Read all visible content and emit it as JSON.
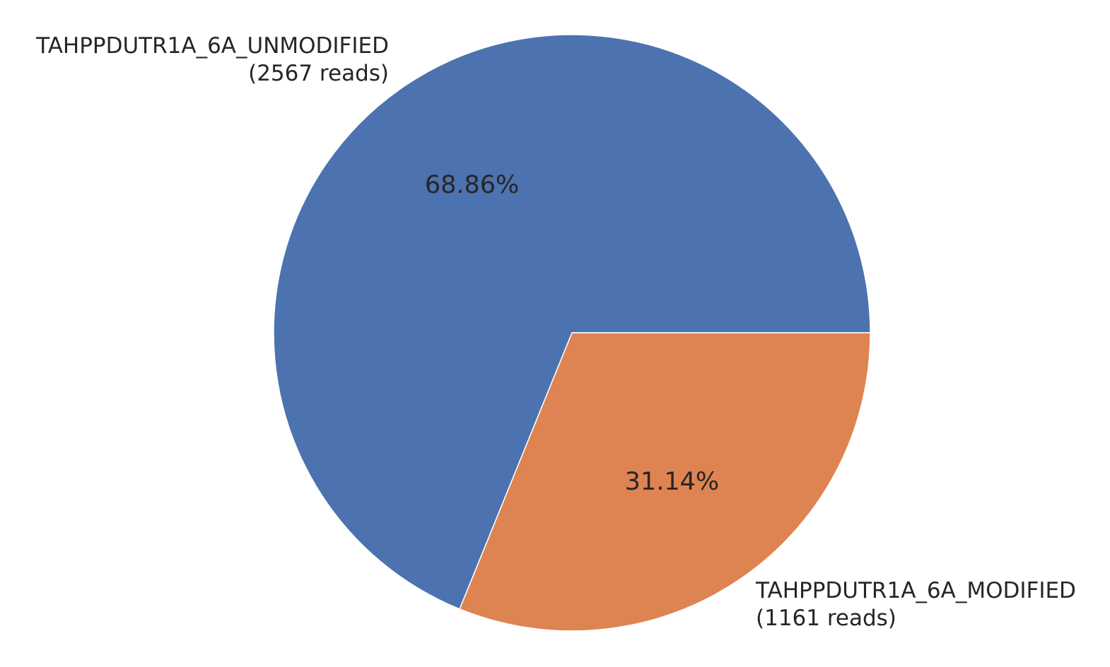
{
  "chart_data": {
    "type": "pie",
    "slices": [
      {
        "name": "TAHPPDUTR1A_6A_UNMODIFIED",
        "reads_label": "(2567 reads)",
        "value": 2567,
        "percent_label": "68.86%",
        "color": "#4c72b0"
      },
      {
        "name": "TAHPPDUTR1A_6A_MODIFIED",
        "reads_label": "(1161 reads)",
        "value": 1161,
        "percent_label": "31.14%",
        "color": "#dd8452"
      }
    ],
    "start_angle_deg": 0,
    "direction": "counterclockwise",
    "edge_color": "#ffffff"
  }
}
